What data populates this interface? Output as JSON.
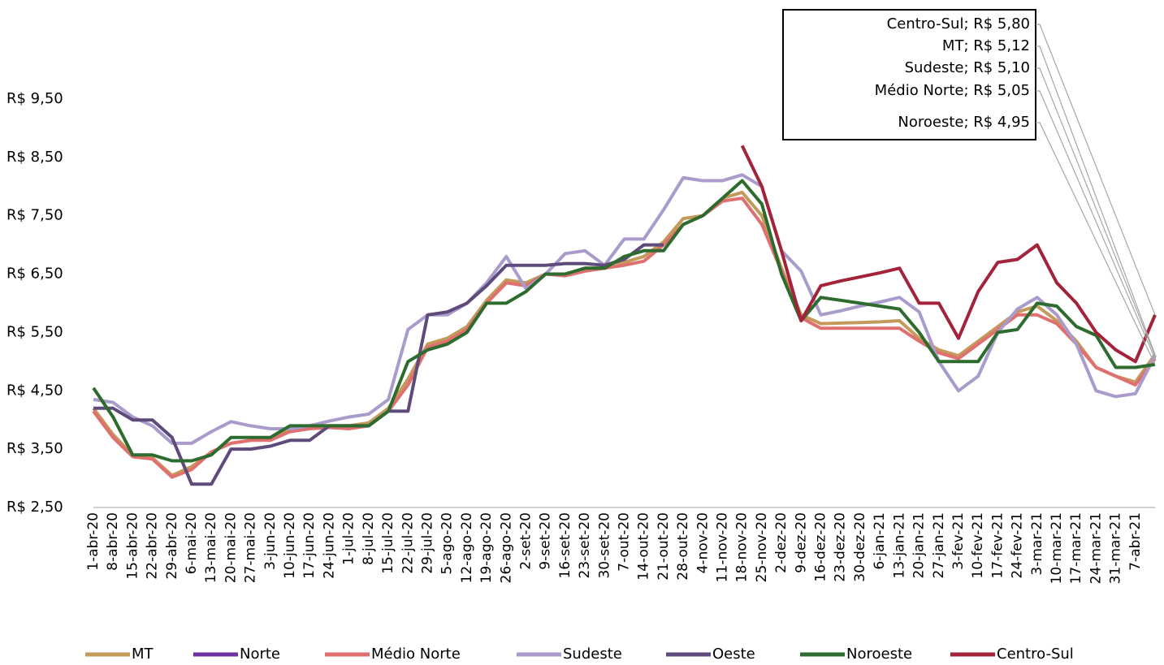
{
  "chart_data": {
    "type": "line",
    "categories": [
      "1-abr-20",
      "8-abr-20",
      "15-abr-20",
      "22-abr-20",
      "29-abr-20",
      "6-mai-20",
      "13-mai-20",
      "20-mai-20",
      "27-mai-20",
      "3-jun-20",
      "10-jun-20",
      "17-jun-20",
      "24-jun-20",
      "1-jul-20",
      "8-jul-20",
      "15-jul-20",
      "22-jul-20",
      "29-jul-20",
      "5-ago-20",
      "12-ago-20",
      "19-ago-20",
      "26-ago-20",
      "2-set-20",
      "9-set-20",
      "16-set-20",
      "23-set-20",
      "30-set-20",
      "7-out-20",
      "14-out-20",
      "21-out-20",
      "28-out-20",
      "4-nov-20",
      "11-nov-20",
      "18-nov-20",
      "25-nov-20",
      "2-dez-20",
      "9-dez-20",
      "16-dez-20",
      "23-dez-20",
      "30-dez-20",
      "6-jan-21",
      "13-jan-21",
      "20-jan-21",
      "27-jan-21",
      "3-fev-21",
      "10-fev-21",
      "17-fev-21",
      "24-fev-21",
      "3-mar-21",
      "10-mar-21",
      "17-mar-21",
      "24-mar-21",
      "31-mar-21",
      "7-abr-21",
      null
    ],
    "series": [
      {
        "name": "MT",
        "color": "#C49A5A",
        "values": [
          4.2,
          3.75,
          3.4,
          3.35,
          3.05,
          3.2,
          3.45,
          3.6,
          3.65,
          3.7,
          3.85,
          3.9,
          3.9,
          3.9,
          3.95,
          4.2,
          4.7,
          5.3,
          5.4,
          5.6,
          6.05,
          6.4,
          6.35,
          6.5,
          6.5,
          6.6,
          6.6,
          6.7,
          6.8,
          7.05,
          7.45,
          7.5,
          7.8,
          7.9,
          7.5,
          6.6,
          5.8,
          5.65,
          5.66,
          5.67,
          5.68,
          5.7,
          5.4,
          5.2,
          5.1,
          5.35,
          5.6,
          5.85,
          5.95,
          5.7,
          5.35,
          4.9,
          4.75,
          4.65,
          5.12
        ]
      },
      {
        "name": "Norte",
        "color": "#7030A0",
        "values": [
          null,
          null,
          null,
          null,
          null,
          null,
          null,
          null,
          null,
          null,
          null,
          null,
          null,
          null,
          null,
          null,
          null,
          null,
          null,
          null,
          null,
          null,
          null,
          null,
          null,
          null,
          null,
          null,
          null,
          null,
          null,
          null,
          null,
          null,
          null,
          null,
          null,
          null,
          null,
          null,
          null,
          null,
          null,
          null,
          null,
          null,
          null,
          null,
          null,
          null,
          null,
          null,
          null,
          null,
          null
        ]
      },
      {
        "name": "Médio Norte",
        "color": "#E07070",
        "values": [
          4.15,
          3.7,
          3.37,
          3.33,
          3.02,
          3.15,
          3.45,
          3.6,
          3.65,
          3.65,
          3.8,
          3.85,
          3.87,
          3.85,
          3.9,
          4.15,
          4.6,
          5.25,
          5.35,
          5.55,
          6.0,
          6.35,
          6.3,
          6.5,
          6.47,
          6.55,
          6.6,
          6.65,
          6.72,
          7.0,
          7.35,
          7.5,
          7.75,
          7.8,
          7.35,
          6.55,
          5.75,
          5.57,
          5.57,
          5.57,
          5.57,
          5.57,
          5.35,
          5.15,
          5.05,
          5.3,
          5.55,
          5.8,
          5.8,
          5.65,
          5.3,
          4.9,
          4.75,
          4.6,
          5.05
        ]
      },
      {
        "name": "Sudeste",
        "color": "#A99BCB",
        "values": [
          4.35,
          4.3,
          4.05,
          3.9,
          3.6,
          3.6,
          3.8,
          3.97,
          3.9,
          3.85,
          3.85,
          3.9,
          3.98,
          4.05,
          4.1,
          4.35,
          5.55,
          5.8,
          5.8,
          6.0,
          6.35,
          6.8,
          6.25,
          6.5,
          6.85,
          6.9,
          6.65,
          7.1,
          7.1,
          7.6,
          8.15,
          8.1,
          8.1,
          8.2,
          8.0,
          6.9,
          6.55,
          5.8,
          5.87,
          5.95,
          6.02,
          6.1,
          5.85,
          5.0,
          4.5,
          4.75,
          5.5,
          5.9,
          6.1,
          5.8,
          5.3,
          4.5,
          4.4,
          4.45,
          5.1
        ]
      },
      {
        "name": "Oeste",
        "color": "#5F4B7B",
        "values": [
          4.2,
          4.2,
          4.0,
          4.0,
          3.7,
          2.9,
          2.9,
          3.5,
          3.5,
          3.55,
          3.65,
          3.65,
          3.9,
          3.9,
          3.9,
          4.15,
          4.15,
          5.8,
          5.85,
          6.0,
          6.3,
          6.65,
          6.65,
          6.65,
          6.68,
          6.68,
          6.65,
          6.75,
          7.0,
          7.0,
          null,
          null,
          null,
          null,
          null,
          null,
          null,
          null,
          null,
          null,
          null,
          null,
          null,
          null,
          null,
          null,
          null,
          null,
          null,
          null,
          null,
          null,
          null,
          null,
          null
        ]
      },
      {
        "name": "Noroeste",
        "color": "#2E6B2E",
        "values": [
          4.55,
          4.05,
          3.4,
          3.4,
          3.3,
          3.3,
          3.4,
          3.7,
          3.7,
          3.7,
          3.9,
          3.9,
          3.9,
          3.9,
          3.9,
          4.15,
          5.0,
          5.2,
          5.3,
          5.5,
          6.0,
          6.0,
          6.2,
          6.5,
          6.5,
          6.6,
          6.6,
          6.8,
          6.9,
          6.9,
          7.35,
          7.5,
          7.8,
          8.1,
          7.7,
          6.5,
          5.7,
          6.1,
          6.05,
          6.0,
          5.95,
          5.9,
          5.5,
          5.0,
          5.0,
          5.0,
          5.5,
          5.55,
          6.0,
          5.95,
          5.6,
          5.45,
          4.9,
          4.9,
          4.95
        ]
      },
      {
        "name": "Centro-Sul",
        "color": "#A3243A",
        "values": [
          null,
          null,
          null,
          null,
          null,
          null,
          null,
          null,
          null,
          null,
          null,
          null,
          null,
          null,
          null,
          null,
          null,
          null,
          null,
          null,
          null,
          null,
          null,
          null,
          null,
          null,
          null,
          null,
          null,
          null,
          null,
          null,
          null,
          8.7,
          8.0,
          6.9,
          5.7,
          6.3,
          6.38,
          6.45,
          6.52,
          6.6,
          6.0,
          6.0,
          5.4,
          6.2,
          6.7,
          6.75,
          7.0,
          6.35,
          6.0,
          5.5,
          5.2,
          5.0,
          5.8
        ]
      }
    ],
    "ylim": [
      2.5,
      10.5
    ],
    "yticks": [
      {
        "value": 2.5,
        "label": "R$ 2,50"
      },
      {
        "value": 3.5,
        "label": "R$ 3,50"
      },
      {
        "value": 4.5,
        "label": "R$ 4,50"
      },
      {
        "value": 5.5,
        "label": "R$ 5,50"
      },
      {
        "value": 6.5,
        "label": "R$ 6,50"
      },
      {
        "value": 7.5,
        "label": "R$ 7,50"
      },
      {
        "value": 8.5,
        "label": "R$ 8,50"
      },
      {
        "value": 9.5,
        "label": "R$ 9,50"
      }
    ],
    "annotations": [
      "Centro-Sul; R$ 5,80",
      "MT; R$ 5,12",
      "Sudeste; R$ 5,10",
      "Médio Norte; R$ 5,05",
      "Noroeste; R$ 4,95"
    ],
    "legend": "bottom"
  }
}
